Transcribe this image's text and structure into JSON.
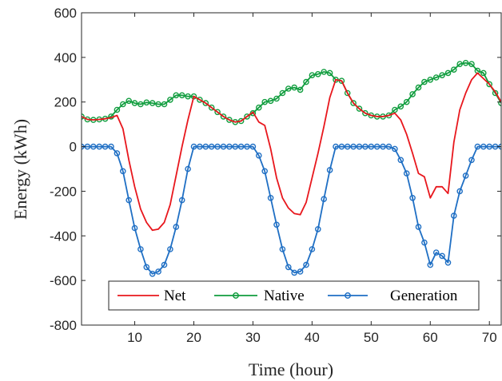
{
  "chart_data": {
    "type": "line",
    "xlabel": "Time (hour)",
    "ylabel": "Energy  (kWh)",
    "xlim": [
      1,
      72
    ],
    "ylim": [
      -800,
      600
    ],
    "xticks": [
      10,
      20,
      30,
      40,
      50,
      60,
      70
    ],
    "xtick_labels": [
      "10",
      "20",
      "30",
      "40",
      "50",
      "60",
      "70"
    ],
    "yticks": [
      -800,
      -600,
      -400,
      -200,
      0,
      200,
      400,
      600
    ],
    "ytick_labels": [
      "-800",
      "-600",
      "-400",
      "-200",
      "0",
      "200",
      "400",
      "600"
    ],
    "grid": false,
    "legend_position": "bottom",
    "x": [
      1,
      2,
      3,
      4,
      5,
      6,
      7,
      8,
      9,
      10,
      11,
      12,
      13,
      14,
      15,
      16,
      17,
      18,
      19,
      20,
      21,
      22,
      23,
      24,
      25,
      26,
      27,
      28,
      29,
      30,
      31,
      32,
      33,
      34,
      35,
      36,
      37,
      38,
      39,
      40,
      41,
      42,
      43,
      44,
      45,
      46,
      47,
      48,
      49,
      50,
      51,
      52,
      53,
      54,
      55,
      56,
      57,
      58,
      59,
      60,
      61,
      62,
      63,
      64,
      65,
      66,
      67,
      68,
      69,
      70,
      71,
      72
    ],
    "series": [
      {
        "name": "Net",
        "color": "#e8171d",
        "marker": "none",
        "values": [
          135,
          122,
          120,
          122,
          125,
          130,
          140,
          80,
          -60,
          -180,
          -280,
          -340,
          -375,
          -370,
          -340,
          -260,
          -130,
          0,
          120,
          225,
          210,
          195,
          175,
          155,
          135,
          120,
          110,
          115,
          135,
          155,
          110,
          95,
          -10,
          -140,
          -230,
          -275,
          -300,
          -305,
          -250,
          -140,
          -30,
          90,
          220,
          300,
          295,
          240,
          195,
          170,
          150,
          140,
          135,
          135,
          140,
          150,
          120,
          55,
          -30,
          -120,
          -135,
          -230,
          -180,
          -180,
          -210,
          20,
          165,
          240,
          300,
          330,
          305,
          280,
          245,
          200
        ]
      },
      {
        "name": "Native",
        "color": "#109d3e",
        "marker": "circle",
        "values": [
          135,
          122,
          120,
          122,
          125,
          135,
          165,
          190,
          205,
          195,
          190,
          198,
          195,
          190,
          190,
          210,
          230,
          230,
          225,
          225,
          210,
          195,
          175,
          155,
          135,
          120,
          110,
          115,
          135,
          150,
          175,
          200,
          205,
          215,
          240,
          260,
          265,
          255,
          290,
          320,
          325,
          335,
          330,
          300,
          295,
          240,
          195,
          170,
          150,
          140,
          135,
          135,
          140,
          165,
          180,
          200,
          235,
          265,
          290,
          300,
          310,
          320,
          330,
          345,
          370,
          375,
          370,
          340,
          330,
          280,
          240,
          195
        ]
      },
      {
        "name": "Generation",
        "color": "#1f6fc4",
        "marker": "circle",
        "values": [
          0,
          0,
          0,
          0,
          0,
          0,
          -30,
          -110,
          -240,
          -365,
          -460,
          -540,
          -570,
          -560,
          -530,
          -460,
          -360,
          -240,
          -100,
          0,
          0,
          0,
          0,
          0,
          0,
          0,
          0,
          0,
          0,
          0,
          -40,
          -110,
          -230,
          -350,
          -460,
          -540,
          -565,
          -560,
          -530,
          -460,
          -370,
          -235,
          -105,
          0,
          0,
          0,
          0,
          0,
          0,
          0,
          0,
          0,
          0,
          -10,
          -60,
          -120,
          -230,
          -360,
          -430,
          -530,
          -475,
          -490,
          -520,
          -310,
          -200,
          -130,
          -60,
          0,
          0,
          0,
          0,
          0
        ]
      }
    ]
  }
}
